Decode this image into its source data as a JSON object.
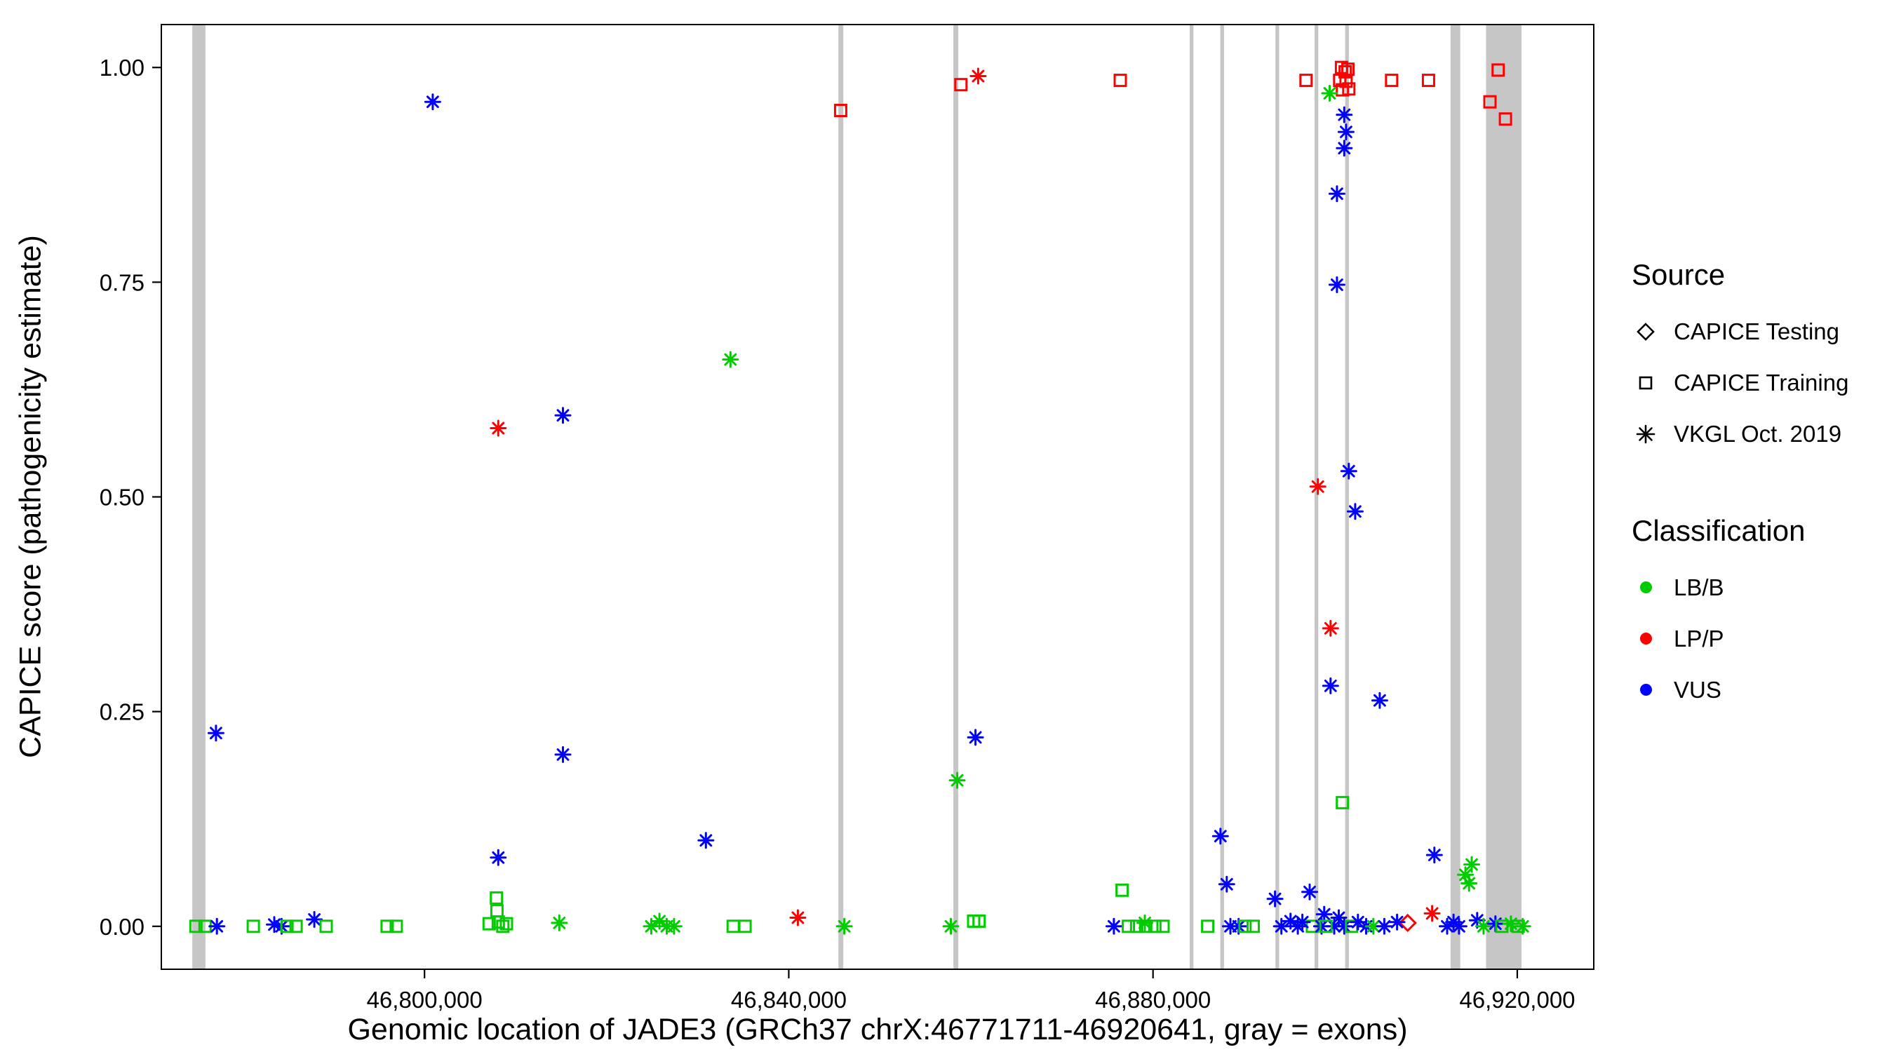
{
  "legend": {
    "source": {
      "title": "Source",
      "items": [
        {
          "key": "test",
          "label": "CAPICE Testing",
          "symbol": "diamond"
        },
        {
          "key": "train",
          "label": "CAPICE Training",
          "symbol": "square"
        },
        {
          "key": "vkgl",
          "label": "VKGL Oct. 2019",
          "symbol": "asterisk"
        }
      ]
    },
    "classification": {
      "title": "Classification",
      "items": [
        {
          "key": "LB/B",
          "label": "LB/B"
        },
        {
          "key": "LP/P",
          "label": "LP/P"
        },
        {
          "key": "VUS",
          "label": "VUS"
        }
      ]
    }
  },
  "chart_data": {
    "type": "scatter",
    "xlabel": "Genomic location of JADE3 (GRCh37 chrX:46771711-46920641, gray = exons)",
    "ylabel": "CAPICE score (pathogenicity estimate)",
    "xlim": [
      46771100,
      46928400
    ],
    "ylim": [
      -0.05,
      1.05
    ],
    "x_ticks": [
      46800000,
      46840000,
      46880000,
      46920000
    ],
    "x_tick_labels": [
      "46,800,000",
      "46,840,000",
      "46,880,000",
      "46,920,000"
    ],
    "y_ticks": [
      0,
      0.25,
      0.5,
      0.75,
      1.0
    ],
    "y_tick_labels": [
      "0.00",
      "0.25",
      "0.50",
      "0.75",
      "1.00"
    ],
    "grid": false,
    "legend_position": "right",
    "colors": {
      "LB/B": "#00CC00",
      "LP/P": "#FF0000",
      "VUS": "#0000FF",
      "exon": "#C6C6C6"
    },
    "source_shapes": {
      "test": "diamond",
      "train": "square",
      "vkgl": "asterisk"
    },
    "exons": [
      [
        46774500,
        46775950
      ],
      [
        46845450,
        46845990
      ],
      [
        46858080,
        46858620
      ],
      [
        46884030,
        46884440
      ],
      [
        46887390,
        46887800
      ],
      [
        46893440,
        46893850
      ],
      [
        46897740,
        46898150
      ],
      [
        46901100,
        46901510
      ],
      [
        46912670,
        46913740
      ],
      [
        46916570,
        46920470
      ]
    ],
    "points_format": [
      "x",
      "y",
      "source",
      "classification"
    ],
    "points": [
      [
        46774900,
        0.0,
        "train",
        "LB/B"
      ],
      [
        46775900,
        0.0,
        "train",
        "LB/B"
      ],
      [
        46777100,
        0.225,
        "vkgl",
        "VUS"
      ],
      [
        46777200,
        0.0,
        "vkgl",
        "VUS"
      ],
      [
        46781200,
        0.0,
        "train",
        "LB/B"
      ],
      [
        46783500,
        0.002,
        "vkgl",
        "VUS"
      ],
      [
        46784300,
        0.0,
        "vkgl",
        "VUS"
      ],
      [
        46784900,
        0.0,
        "train",
        "LB/B"
      ],
      [
        46785900,
        0.0,
        "train",
        "LB/B"
      ],
      [
        46787900,
        0.008,
        "vkgl",
        "VUS"
      ],
      [
        46789200,
        0.0,
        "train",
        "LB/B"
      ],
      [
        46795900,
        0.0,
        "train",
        "LB/B"
      ],
      [
        46796900,
        0.0,
        "train",
        "LB/B"
      ],
      [
        46800900,
        0.96,
        "vkgl",
        "VUS"
      ],
      [
        46807100,
        0.003,
        "train",
        "LB/B"
      ],
      [
        46807900,
        0.033,
        "train",
        "LB/B"
      ],
      [
        46807950,
        0.018,
        "train",
        "LB/B"
      ],
      [
        46808100,
        0.005,
        "train",
        "LB/B"
      ],
      [
        46808600,
        0.0,
        "train",
        "LB/B"
      ],
      [
        46809000,
        0.003,
        "train",
        "LB/B"
      ],
      [
        46808100,
        0.58,
        "vkgl",
        "LP/P"
      ],
      [
        46808100,
        0.08,
        "vkgl",
        "VUS"
      ],
      [
        46814800,
        0.004,
        "vkgl",
        "LB/B"
      ],
      [
        46815200,
        0.595,
        "vkgl",
        "VUS"
      ],
      [
        46815200,
        0.2,
        "vkgl",
        "VUS"
      ],
      [
        46824900,
        0.0,
        "vkgl",
        "LB/B"
      ],
      [
        46825800,
        0.006,
        "vkgl",
        "LB/B"
      ],
      [
        46826600,
        0.0,
        "vkgl",
        "LB/B"
      ],
      [
        46827400,
        0.0,
        "vkgl",
        "LB/B"
      ],
      [
        46830900,
        0.1,
        "vkgl",
        "VUS"
      ],
      [
        46833600,
        0.66,
        "vkgl",
        "LB/B"
      ],
      [
        46833900,
        0.0,
        "train",
        "LB/B"
      ],
      [
        46835200,
        0.0,
        "train",
        "LB/B"
      ],
      [
        46841000,
        0.01,
        "vkgl",
        "LP/P"
      ],
      [
        46845700,
        0.95,
        "train",
        "LP/P"
      ],
      [
        46846100,
        0.0,
        "vkgl",
        "LB/B"
      ],
      [
        46857800,
        0.0,
        "vkgl",
        "LB/B"
      ],
      [
        46858500,
        0.17,
        "vkgl",
        "LB/B"
      ],
      [
        46858900,
        0.98,
        "train",
        "LP/P"
      ],
      [
        46860500,
        0.22,
        "vkgl",
        "VUS"
      ],
      [
        46860800,
        0.99,
        "vkgl",
        "LP/P"
      ],
      [
        46860300,
        0.006,
        "train",
        "LB/B"
      ],
      [
        46860900,
        0.006,
        "train",
        "LB/B"
      ],
      [
        46875700,
        0.0,
        "vkgl",
        "VUS"
      ],
      [
        46876400,
        0.985,
        "train",
        "LP/P"
      ],
      [
        46876600,
        0.042,
        "train",
        "LB/B"
      ],
      [
        46877300,
        0.0,
        "train",
        "LB/B"
      ],
      [
        46878200,
        0.0,
        "train",
        "LB/B"
      ],
      [
        46879100,
        0.004,
        "vkgl",
        "LB/B"
      ],
      [
        46879200,
        0.0,
        "train",
        "LB/B"
      ],
      [
        46880200,
        0.0,
        "train",
        "LB/B"
      ],
      [
        46881100,
        0.0,
        "train",
        "LB/B"
      ],
      [
        46886000,
        0.0,
        "train",
        "LB/B"
      ],
      [
        46887400,
        0.105,
        "vkgl",
        "VUS"
      ],
      [
        46888100,
        0.049,
        "vkgl",
        "VUS"
      ],
      [
        46888500,
        0.0,
        "vkgl",
        "VUS"
      ],
      [
        46889400,
        0.0,
        "vkgl",
        "VUS"
      ],
      [
        46890100,
        0.0,
        "train",
        "LB/B"
      ],
      [
        46891000,
        0.0,
        "train",
        "LB/B"
      ],
      [
        46893400,
        0.032,
        "vkgl",
        "VUS"
      ],
      [
        46894100,
        0.0,
        "vkgl",
        "VUS"
      ],
      [
        46895100,
        0.006,
        "vkgl",
        "VUS"
      ],
      [
        46895900,
        0.0,
        "vkgl",
        "VUS"
      ],
      [
        46896800,
        0.985,
        "train",
        "LP/P"
      ],
      [
        46897200,
        0.04,
        "vkgl",
        "VUS"
      ],
      [
        46897500,
        0.0,
        "train",
        "LB/B"
      ],
      [
        46898100,
        0.512,
        "vkgl",
        "LP/P"
      ],
      [
        46898800,
        0.014,
        "vkgl",
        "VUS"
      ],
      [
        46899500,
        0.347,
        "vkgl",
        "LP/P"
      ],
      [
        46899500,
        0.28,
        "vkgl",
        "VUS"
      ],
      [
        46899900,
        0.0,
        "vkgl",
        "VUS"
      ],
      [
        46900200,
        0.747,
        "vkgl",
        "VUS"
      ],
      [
        46900200,
        0.853,
        "vkgl",
        "VUS"
      ],
      [
        46900700,
        1.0,
        "train",
        "LP/P"
      ],
      [
        46901100,
        0.995,
        "train",
        "LP/P"
      ],
      [
        46901400,
        0.998,
        "train",
        "LP/P"
      ],
      [
        46900500,
        0.985,
        "train",
        "LP/P"
      ],
      [
        46901200,
        0.984,
        "train",
        "LP/P"
      ],
      [
        46900800,
        0.974,
        "train",
        "LP/P"
      ],
      [
        46901500,
        0.975,
        "train",
        "LP/P"
      ],
      [
        46899400,
        0.97,
        "vkgl",
        "LB/B"
      ],
      [
        46901000,
        0.945,
        "vkgl",
        "VUS"
      ],
      [
        46901200,
        0.925,
        "vkgl",
        "VUS"
      ],
      [
        46901000,
        0.906,
        "vkgl",
        "VUS"
      ],
      [
        46901500,
        0.53,
        "vkgl",
        "VUS"
      ],
      [
        46902200,
        0.483,
        "vkgl",
        "VUS"
      ],
      [
        46900800,
        0.144,
        "train",
        "LB/B"
      ],
      [
        46904900,
        0.263,
        "vkgl",
        "VUS"
      ],
      [
        46906200,
        0.985,
        "train",
        "LP/P"
      ],
      [
        46907960,
        0.004,
        "test",
        "LP/P"
      ],
      [
        46910250,
        0.985,
        "train",
        "LP/P"
      ],
      [
        46910650,
        0.015,
        "vkgl",
        "LP/P"
      ],
      [
        46910900,
        0.083,
        "vkgl",
        "VUS"
      ],
      [
        46896400,
        0.005,
        "vkgl",
        "VUS"
      ],
      [
        46898500,
        0.0,
        "vkgl",
        "VUS"
      ],
      [
        46899000,
        0.0,
        "train",
        "LB/B"
      ],
      [
        46900400,
        0.01,
        "vkgl",
        "VUS"
      ],
      [
        46901000,
        0.0,
        "vkgl",
        "VUS"
      ],
      [
        46901800,
        0.0,
        "train",
        "LB/B"
      ],
      [
        46902500,
        0.005,
        "vkgl",
        "VUS"
      ],
      [
        46903400,
        0.0,
        "vkgl",
        "VUS"
      ],
      [
        46904200,
        0.0,
        "vkgl",
        "LB/B"
      ],
      [
        46905400,
        0.0,
        "vkgl",
        "VUS"
      ],
      [
        46906800,
        0.005,
        "vkgl",
        "VUS"
      ],
      [
        46912300,
        0.0,
        "vkgl",
        "VUS"
      ],
      [
        46913000,
        0.005,
        "vkgl",
        "VUS"
      ],
      [
        46913600,
        0.0,
        "vkgl",
        "VUS"
      ],
      [
        46914300,
        0.06,
        "vkgl",
        "LB/B"
      ],
      [
        46914700,
        0.05,
        "vkgl",
        "LB/B"
      ],
      [
        46915000,
        0.072,
        "vkgl",
        "LB/B"
      ],
      [
        46915600,
        0.007,
        "vkgl",
        "VUS"
      ],
      [
        46916300,
        0.0,
        "vkgl",
        "LB/B"
      ],
      [
        46917000,
        0.96,
        "train",
        "LP/P"
      ],
      [
        46917900,
        0.997,
        "train",
        "LP/P"
      ],
      [
        46918700,
        0.94,
        "train",
        "LP/P"
      ],
      [
        46917600,
        0.003,
        "vkgl",
        "VUS"
      ],
      [
        46918300,
        0.0,
        "train",
        "LB/B"
      ],
      [
        46919300,
        0.003,
        "vkgl",
        "LB/B"
      ],
      [
        46920100,
        0.0,
        "train",
        "LB/B"
      ],
      [
        46920600,
        0.0,
        "vkgl",
        "LB/B"
      ]
    ]
  }
}
